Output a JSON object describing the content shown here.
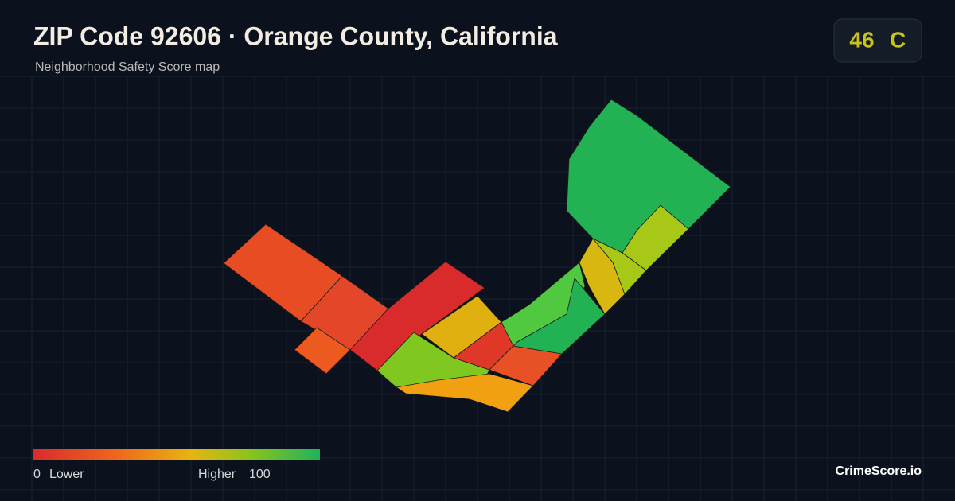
{
  "header": {
    "title": "ZIP Code 92606 · Orange County, California",
    "subtitle": "Neighborhood Safety Score map"
  },
  "score": {
    "value": 46,
    "grade": "C"
  },
  "legend": {
    "min": 0,
    "min_label": "Lower",
    "max_label": "Higher",
    "max": 100
  },
  "brand": "CrimeScore.io"
}
